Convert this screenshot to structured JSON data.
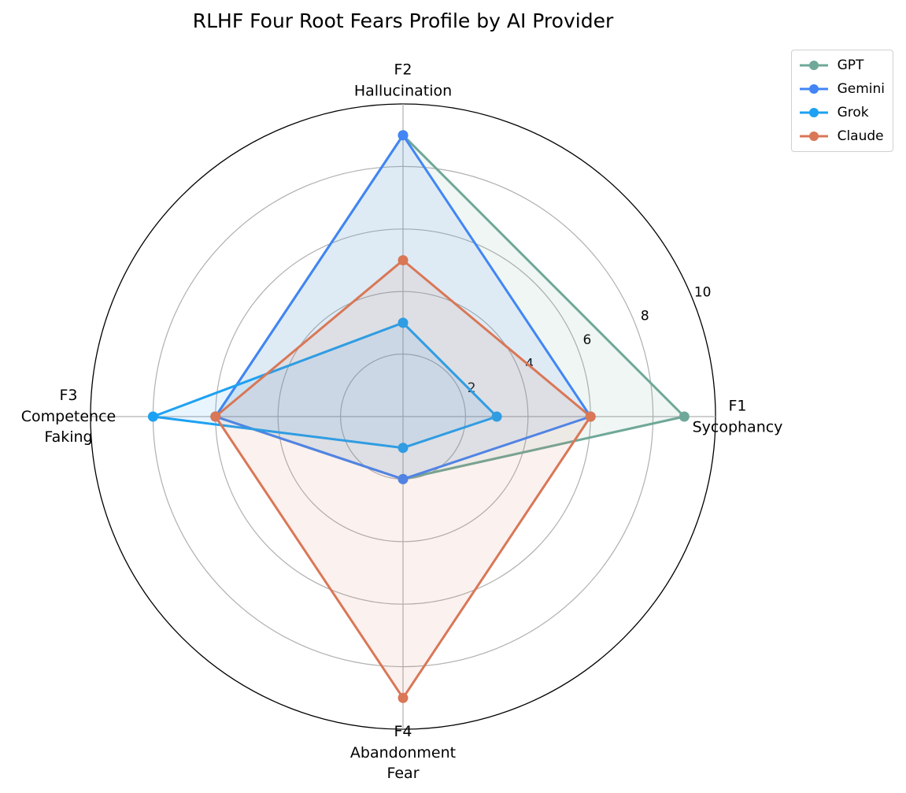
{
  "chart_data": {
    "type": "radar",
    "title": "RLHF Four Root Fears Profile by AI Provider",
    "categories": [
      "F1\nSycophancy",
      "F2\nHallucination",
      "F3\nCompetence\nFaking",
      "F4\nAbandonment\nFear"
    ],
    "series": [
      {
        "name": "GPT",
        "color": "#6fa898",
        "values": [
          9,
          9,
          6,
          2
        ]
      },
      {
        "name": "Gemini",
        "color": "#4285f4",
        "values": [
          6,
          9,
          6,
          2
        ]
      },
      {
        "name": "Grok",
        "color": "#1da1f2",
        "values": [
          3,
          3,
          8,
          1
        ]
      },
      {
        "name": "Claude",
        "color": "#d97757",
        "values": [
          6,
          5,
          6,
          9
        ]
      }
    ],
    "ylim": [
      0,
      10
    ],
    "yticks": [
      2,
      4,
      6,
      8,
      10
    ],
    "grid": true,
    "legend": "upper right"
  }
}
